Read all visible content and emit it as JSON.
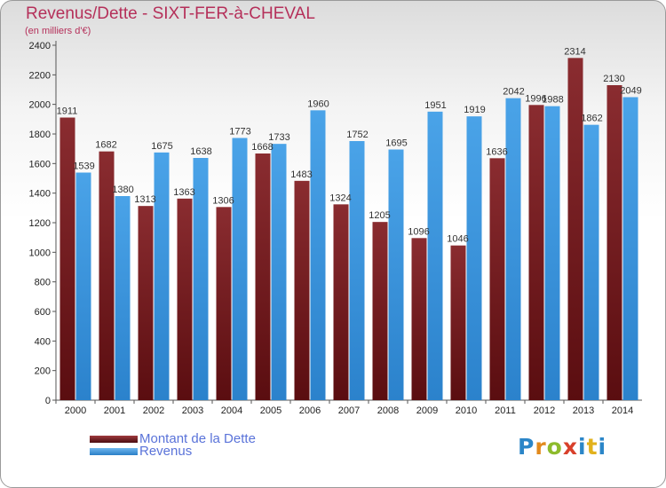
{
  "header": {
    "title": "Revenus/Dette - SIXT-FER-à-CHEVAL",
    "subtitle": "(en milliers d'€)"
  },
  "chart_data": {
    "type": "bar",
    "title": "Revenus/Dette - SIXT-FER-à-CHEVAL",
    "ylabel": "(en milliers d'€)",
    "xlabel": "",
    "categories": [
      "2000",
      "2001",
      "2002",
      "2003",
      "2004",
      "2005",
      "2006",
      "2007",
      "2008",
      "2009",
      "2010",
      "2011",
      "2012",
      "2013",
      "2014"
    ],
    "series": [
      {
        "name": "Montant de la Dette",
        "color": "#7b1f22",
        "values": [
          1911,
          1682,
          1313,
          1363,
          1306,
          1668,
          1483,
          1324,
          1205,
          1096,
          1046,
          1636,
          1996,
          2314,
          2130
        ],
        "labels": [
          "1911",
          "1682",
          "1313",
          "1363",
          "1306",
          "1668",
          "1483",
          "1324",
          "1205",
          "1096",
          "1046",
          "1636",
          "1996",
          "2314",
          "2130"
        ]
      },
      {
        "name": "Revenus",
        "color": "#3d95de",
        "values": [
          1539,
          1380,
          1675,
          1638,
          1773,
          1733,
          1960,
          1752,
          1695,
          1951,
          1919,
          2042,
          1988,
          1862,
          2049
        ],
        "labels": [
          "1539",
          "1380",
          "1675",
          "1638",
          "1773",
          "1733",
          "1960",
          "1752",
          "1695",
          "1951",
          "1919",
          "2042",
          "1988",
          "1862",
          "2049"
        ]
      }
    ],
    "yticks": [
      "0",
      "200",
      "400",
      "600",
      "800",
      "1000",
      "1200",
      "1400",
      "1600",
      "1800",
      "2000",
      "2200",
      "2400"
    ],
    "ylim": [
      0,
      2400
    ],
    "grid": false,
    "legend_position": "bottom-left"
  },
  "legend": {
    "items": [
      {
        "label": "Montant de la Dette",
        "color": "#7b1f22"
      },
      {
        "label": "Revenus",
        "color": "#3d95de"
      }
    ]
  },
  "logo": {
    "text": "Proxiti",
    "letters": [
      "P",
      "r",
      "o",
      "x",
      "i",
      "t",
      "i"
    ]
  }
}
